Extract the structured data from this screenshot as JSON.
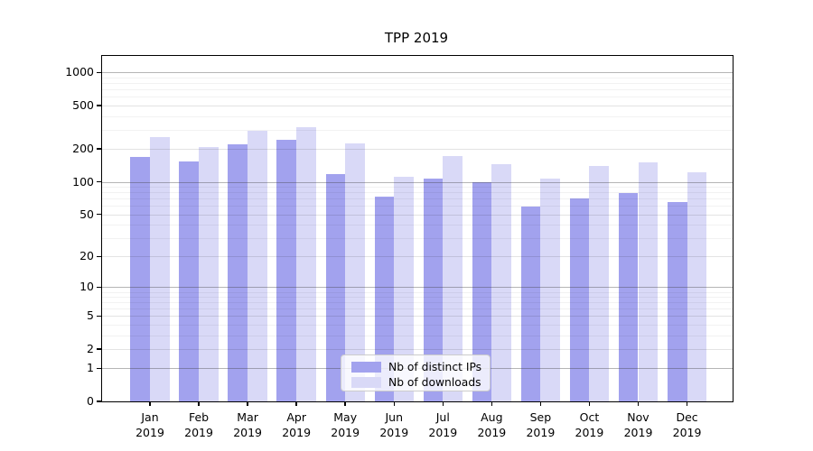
{
  "figure": {
    "title": "TPP 2019"
  },
  "chart_data": {
    "type": "bar",
    "title": "TPP 2019",
    "categories": [
      "Jan",
      "Feb",
      "Mar",
      "Apr",
      "May",
      "Jun",
      "Jul",
      "Aug",
      "Sep",
      "Oct",
      "Nov",
      "Dec"
    ],
    "category_year": "2019",
    "series": [
      {
        "name": "Nb of distinct IPs",
        "color": "#a2a2ee",
        "values": [
          170,
          155,
          220,
          242,
          117,
          73,
          107,
          100,
          59,
          70,
          78,
          65
        ]
      },
      {
        "name": "Nb of downloads",
        "color": "#d9d9f7",
        "values": [
          255,
          210,
          295,
          315,
          225,
          111,
          172,
          144,
          106,
          140,
          152,
          123
        ]
      }
    ],
    "yscale": "log1p",
    "yticks": [
      0,
      1,
      2,
      5,
      10,
      20,
      50,
      100,
      200,
      500,
      1000
    ],
    "ytick_labels": [
      "0",
      "1",
      "2",
      "5",
      "10",
      "20",
      "50",
      "100",
      "200",
      "500",
      "1000"
    ],
    "major_grid_ticks": [
      1,
      10,
      100,
      1000
    ],
    "mid_grid_ticks": [
      2,
      5,
      20,
      50,
      200,
      500
    ],
    "minor_grid_ticks": [
      3,
      4,
      6,
      7,
      8,
      9,
      30,
      40,
      60,
      70,
      80,
      90,
      300,
      400,
      600,
      700,
      800,
      900
    ],
    "ylim": [
      0,
      1420
    ],
    "xlabel": "",
    "ylabel": "",
    "grid": "both",
    "legend_position": "lower center"
  },
  "legend": {
    "items": [
      {
        "label": "Nb of distinct IPs",
        "color": "#a2a2ee"
      },
      {
        "label": "Nb of downloads",
        "color": "#d9d9f7"
      }
    ]
  },
  "colors": {
    "bar_ips": "#a2a2ee",
    "bar_downloads": "#d9d9f7",
    "axis": "#000000",
    "major_grid": "#bcbcbc",
    "mid_grid": "#e3e3e3",
    "minor_grid": "#f2f2f2"
  }
}
